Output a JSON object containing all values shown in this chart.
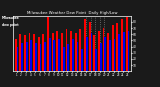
{
  "title": "Milwaukee Weather Dew Point",
  "subtitle": "Daily High/Low",
  "bar_width": 0.4,
  "background_color": "#1a1a1a",
  "plot_bg_color": "#1a1a1a",
  "high_color": "#ff0000",
  "low_color": "#0000ee",
  "text_color": "#ffffff",
  "xlabels": [
    "1",
    "2",
    "3",
    "4",
    "5",
    "6",
    "7",
    "8",
    "9",
    "10",
    "11",
    "12",
    "13",
    "14",
    "15",
    "16",
    "17",
    "18",
    "19",
    "20",
    "21",
    "22",
    "23",
    "24",
    "25"
  ],
  "high_vals": [
    52,
    60,
    58,
    62,
    60,
    55,
    60,
    88,
    62,
    65,
    62,
    68,
    65,
    62,
    68,
    85,
    80,
    58,
    65,
    70,
    62,
    75,
    78,
    85,
    88
  ],
  "low_vals": [
    40,
    46,
    48,
    50,
    46,
    44,
    48,
    54,
    50,
    52,
    40,
    45,
    52,
    48,
    36,
    56,
    62,
    36,
    46,
    56,
    50,
    52,
    60,
    64,
    66
  ],
  "ylim": [
    0,
    90
  ],
  "yticks": [
    10,
    20,
    30,
    40,
    50,
    60,
    70,
    80
  ],
  "ytick_labels": [
    "10",
    "20",
    "30",
    "40",
    "50",
    "60",
    "70",
    "80"
  ],
  "grid_dot_positions": [
    15,
    16,
    17,
    18,
    19
  ],
  "left_label_lines": [
    "Milwaukee",
    "dew point"
  ]
}
